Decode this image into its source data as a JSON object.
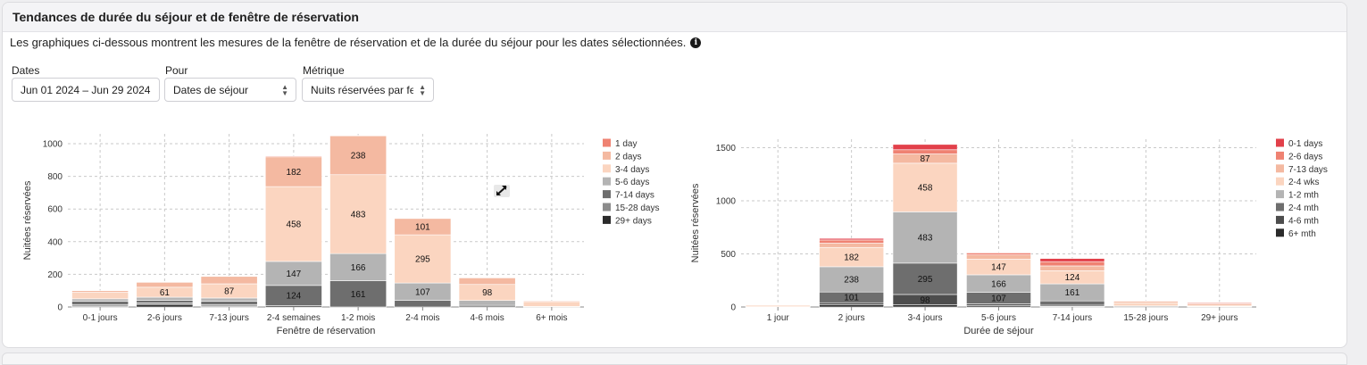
{
  "header": {
    "title": "Tendances de durée du séjour et de fenêtre de réservation"
  },
  "description": {
    "text": "Les graphiques ci-dessous montrent les mesures de la fenêtre de réservation et de la durée du séjour pour les dates sélectionnées.",
    "info_icon": "info-icon"
  },
  "filters": {
    "dates": {
      "label": "Dates",
      "value": "Jun 01 2024 – Jun 29 2024"
    },
    "pour": {
      "label": "Pour",
      "value": "Dates de séjour"
    },
    "metrique": {
      "label": "Métrique",
      "value": "Nuits réservées par fen"
    }
  },
  "cursor_icon": "resize-diagonal-icon",
  "chart_data": [
    {
      "type": "bar",
      "stacked": true,
      "xlabel": "Fenêtre de réservation",
      "ylabel": "Nuitées réservées",
      "ylim": [
        0,
        1060
      ],
      "yticks": [
        0,
        200,
        400,
        600,
        800,
        1000
      ],
      "grid": true,
      "legend_position": "right",
      "categories": [
        "0-1 jours",
        "2-6 jours",
        "7-13 jours",
        "2-4 semaines",
        "1-2 mois",
        "2-4 mois",
        "4-6 mois",
        "6+ mois"
      ],
      "series": [
        {
          "name": "29+ days",
          "color": "#2b2b2b",
          "values": [
            5,
            15,
            5,
            8,
            0,
            0,
            0,
            0
          ],
          "labels": [
            "",
            "",
            "",
            "",
            "",
            "",
            "",
            ""
          ]
        },
        {
          "name": "15-28 days",
          "color": "#8c8c8c",
          "values": [
            10,
            10,
            10,
            0,
            0,
            0,
            0,
            0
          ],
          "labels": [
            "",
            "",
            "",
            "",
            "",
            "",
            "",
            ""
          ]
        },
        {
          "name": "7-14 days",
          "color": "#6e6e6e",
          "values": [
            20,
            15,
            20,
            124,
            161,
            40,
            10,
            0
          ],
          "labels": [
            "",
            "",
            "",
            "124",
            "161",
            "",
            "",
            ""
          ]
        },
        {
          "name": "5-6 days",
          "color": "#b4b4b4",
          "values": [
            15,
            20,
            20,
            147,
            166,
            107,
            30,
            3
          ],
          "labels": [
            "",
            "",
            "",
            "147",
            "166",
            "107",
            "",
            ""
          ]
        },
        {
          "name": "3-4 days",
          "color": "#fbd5c0",
          "values": [
            40,
            61,
            87,
            458,
            483,
            295,
            98,
            30
          ],
          "labels": [
            "",
            "61",
            "87",
            "458",
            "483",
            "295",
            "98",
            ""
          ]
        },
        {
          "name": "2 days",
          "color": "#f4b9a1",
          "values": [
            10,
            30,
            45,
            182,
            238,
            101,
            40,
            5
          ],
          "labels": [
            "",
            "",
            "",
            "182",
            "238",
            "101",
            "",
            ""
          ]
        },
        {
          "name": "1 day",
          "color": "#ef8272",
          "values": [
            0,
            0,
            0,
            5,
            3,
            2,
            0,
            0
          ],
          "labels": [
            "",
            "",
            "",
            "",
            "",
            "",
            "",
            ""
          ]
        }
      ]
    },
    {
      "type": "bar",
      "stacked": true,
      "xlabel": "Durée de séjour",
      "ylabel": "Nuitées réservées",
      "ylim": [
        0,
        1580
      ],
      "yticks": [
        0,
        500,
        1000,
        1500
      ],
      "grid": true,
      "legend_position": "right",
      "categories": [
        "1 jour",
        "2 jours",
        "3-4 jours",
        "5-6 jours",
        "7-14 jours",
        "15-28 jours",
        "29+ jours"
      ],
      "series": [
        {
          "name": "6+ mth",
          "color": "#2b2b2b",
          "values": [
            0,
            20,
            20,
            12,
            5,
            0,
            0
          ],
          "labels": [
            "",
            "",
            "",
            "",
            "",
            "",
            ""
          ]
        },
        {
          "name": "4-6 mth",
          "color": "#4d4d4d",
          "values": [
            0,
            20,
            98,
            18,
            12,
            0,
            0
          ],
          "labels": [
            "",
            "",
            "98",
            "",
            "",
            "",
            ""
          ]
        },
        {
          "name": "2-4 mth",
          "color": "#6e6e6e",
          "values": [
            0,
            101,
            295,
            107,
            40,
            0,
            0
          ],
          "labels": [
            "",
            "101",
            "295",
            "107",
            "",
            "",
            ""
          ]
        },
        {
          "name": "1-2 mth",
          "color": "#b4b4b4",
          "values": [
            3,
            238,
            483,
            166,
            161,
            10,
            5
          ],
          "labels": [
            "",
            "238",
            "483",
            "166",
            "161",
            "",
            ""
          ]
        },
        {
          "name": "2-4 wks",
          "color": "#fbd5c0",
          "values": [
            15,
            182,
            458,
            147,
            124,
            30,
            10
          ],
          "labels": [
            "",
            "182",
            "458",
            "147",
            "124",
            "",
            ""
          ]
        },
        {
          "name": "7-13 days",
          "color": "#f4b9a1",
          "values": [
            3,
            40,
            87,
            40,
            45,
            15,
            15
          ],
          "labels": [
            "",
            "",
            "87",
            "",
            "",
            "",
            ""
          ]
        },
        {
          "name": "2-6 days",
          "color": "#ef8272",
          "values": [
            0,
            30,
            40,
            20,
            40,
            5,
            10
          ],
          "labels": [
            "",
            "",
            "",
            "",
            "",
            "",
            ""
          ]
        },
        {
          "name": "0-1 days",
          "color": "#e2404a",
          "values": [
            0,
            15,
            50,
            5,
            30,
            0,
            5
          ],
          "labels": [
            "",
            "",
            "",
            "",
            "",
            "",
            ""
          ]
        }
      ]
    }
  ]
}
